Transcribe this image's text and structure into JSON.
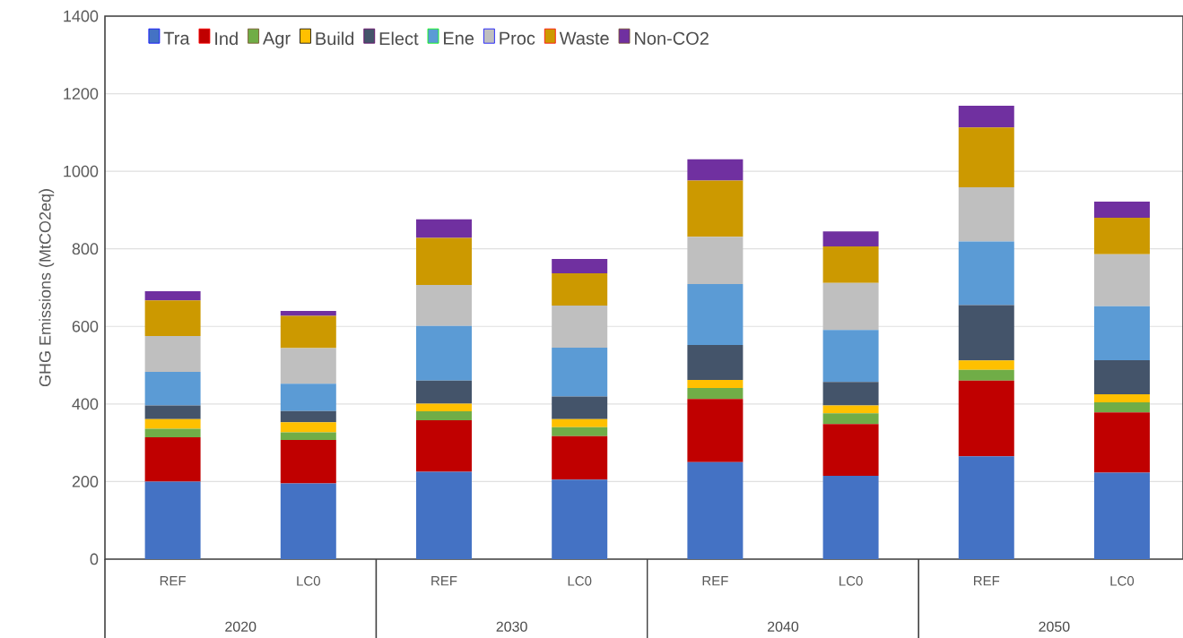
{
  "chart_data": {
    "type": "bar",
    "stacked": true,
    "ylabel": "GHG Emissions (MtCO2eq)",
    "categories": [
      "REF",
      "LC0",
      "REF",
      "LC0",
      "REF",
      "LC0",
      "REF",
      "LC0"
    ],
    "annotations": [
      "2020",
      "2030",
      "2040",
      "2050"
    ],
    "ylim": [
      0,
      1400
    ],
    "yticks": [
      0,
      200,
      400,
      600,
      800,
      1000,
      1200,
      1400
    ],
    "grid": "y",
    "legend": "top left",
    "series": [
      {
        "name": "Tra",
        "color": "#4472c4",
        "values": [
          200,
          195,
          225,
          205,
          250,
          215,
          265,
          223
        ]
      },
      {
        "name": "Ind",
        "color": "#c00000",
        "values": [
          114,
          112,
          133,
          112,
          163,
          133,
          195,
          155
        ]
      },
      {
        "name": "Agr",
        "color": "#70ad47",
        "values": [
          22,
          20,
          23,
          23,
          28,
          28,
          28,
          26
        ]
      },
      {
        "name": "Build",
        "color": "#ffc000",
        "values": [
          25,
          26,
          20,
          21,
          21,
          20,
          24,
          21
        ]
      },
      {
        "name": "Elect",
        "color": "#44546a",
        "values": [
          35,
          29,
          59,
          58,
          90,
          61,
          143,
          88
        ]
      },
      {
        "name": "Ene",
        "color": "#5b9bd5",
        "values": [
          87,
          70,
          141,
          126,
          157,
          134,
          164,
          139
        ]
      },
      {
        "name": "Proc",
        "color": "#bfbfbf",
        "values": [
          92,
          92,
          106,
          109,
          122,
          121,
          140,
          134
        ]
      },
      {
        "name": "Waste",
        "color": "#cc9900",
        "values": [
          92,
          83,
          121,
          83,
          145,
          94,
          154,
          94
        ]
      },
      {
        "name": "Non-CO2",
        "color": "#7030a0",
        "values": [
          24,
          13,
          48,
          37,
          55,
          39,
          56,
          42
        ]
      }
    ]
  }
}
